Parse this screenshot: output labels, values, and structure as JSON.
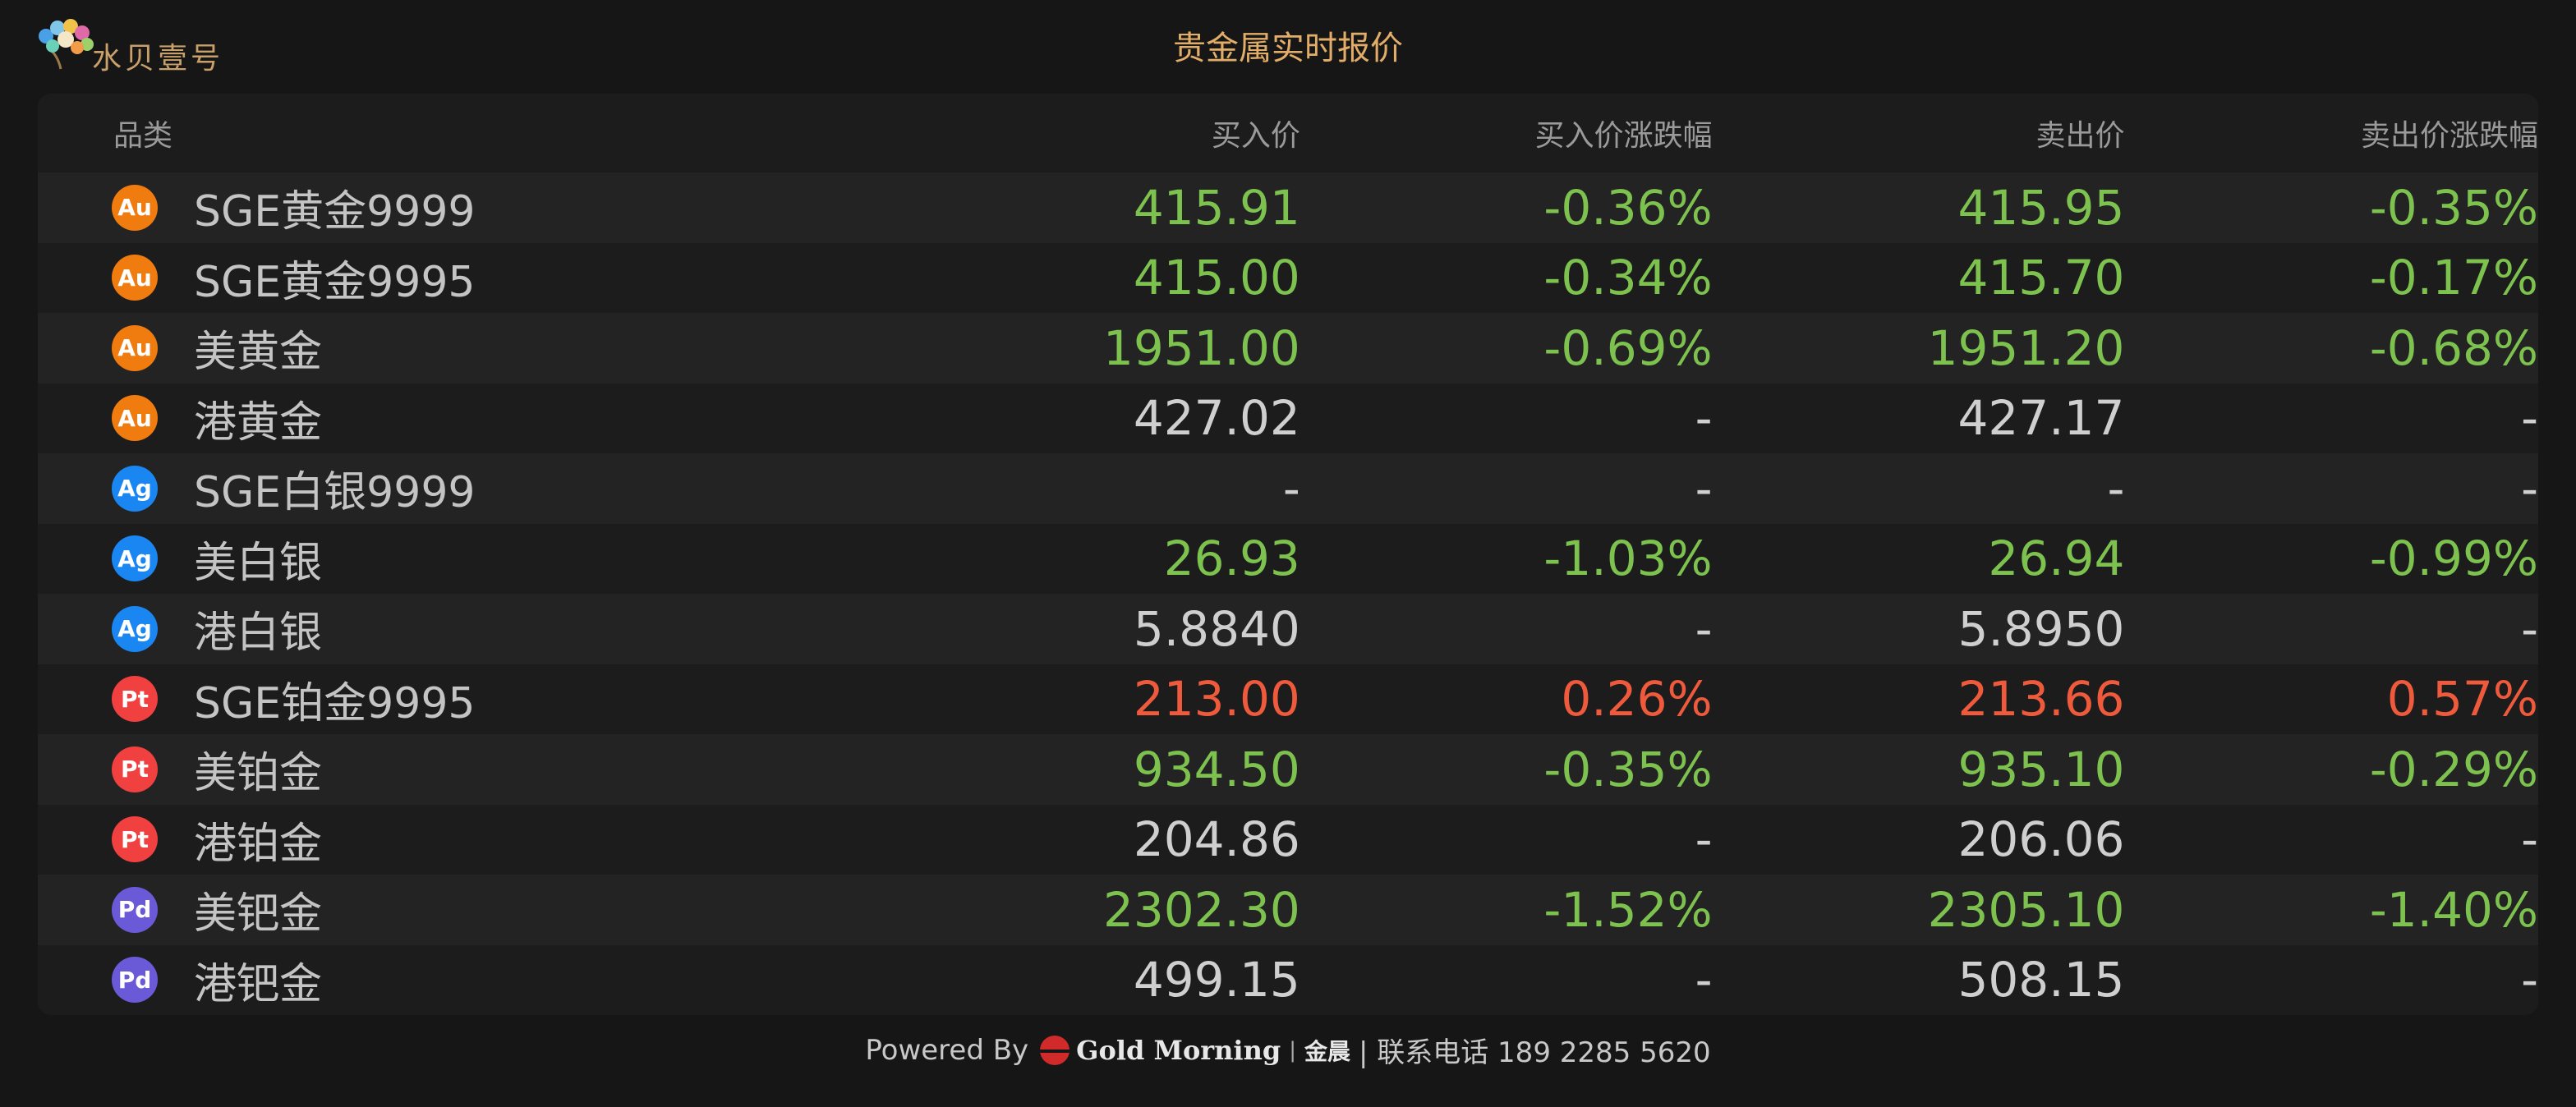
{
  "header": {
    "logo_text": "水贝壹号",
    "title": "贵金属实时报价"
  },
  "columns": {
    "name": "品类",
    "buy": "买入价",
    "buy_change": "买入价涨跌幅",
    "sell": "卖出价",
    "sell_change": "卖出价涨跌幅"
  },
  "badge_colors": {
    "Au": "#f07b0f",
    "Ag": "#1a86f2",
    "Pt": "#f04040",
    "Pd": "#6a5ad8"
  },
  "value_colors": {
    "up": "#ef5a3c",
    "down": "#7dc24e",
    "flat": "#cfcfcf"
  },
  "rows": [
    {
      "badge": "Au",
      "name": "SGE黄金9999",
      "buy": "415.91",
      "buy_change": "-0.36%",
      "sell": "415.95",
      "sell_change": "-0.35%",
      "trend": "down"
    },
    {
      "badge": "Au",
      "name": "SGE黄金9995",
      "buy": "415.00",
      "buy_change": "-0.34%",
      "sell": "415.70",
      "sell_change": "-0.17%",
      "trend": "down"
    },
    {
      "badge": "Au",
      "name": "美黄金",
      "buy": "1951.00",
      "buy_change": "-0.69%",
      "sell": "1951.20",
      "sell_change": "-0.68%",
      "trend": "down"
    },
    {
      "badge": "Au",
      "name": "港黄金",
      "buy": "427.02",
      "buy_change": "-",
      "sell": "427.17",
      "sell_change": "-",
      "trend": "flat"
    },
    {
      "badge": "Ag",
      "name": "SGE白银9999",
      "buy": "-",
      "buy_change": "-",
      "sell": "-",
      "sell_change": "-",
      "trend": "flat"
    },
    {
      "badge": "Ag",
      "name": "美白银",
      "buy": "26.93",
      "buy_change": "-1.03%",
      "sell": "26.94",
      "sell_change": "-0.99%",
      "trend": "down"
    },
    {
      "badge": "Ag",
      "name": "港白银",
      "buy": "5.8840",
      "buy_change": "-",
      "sell": "5.8950",
      "sell_change": "-",
      "trend": "flat"
    },
    {
      "badge": "Pt",
      "name": "SGE铂金9995",
      "buy": "213.00",
      "buy_change": "0.26%",
      "sell": "213.66",
      "sell_change": "0.57%",
      "trend": "up"
    },
    {
      "badge": "Pt",
      "name": "美铂金",
      "buy": "934.50",
      "buy_change": "-0.35%",
      "sell": "935.10",
      "sell_change": "-0.29%",
      "trend": "down"
    },
    {
      "badge": "Pt",
      "name": "港铂金",
      "buy": "204.86",
      "buy_change": "-",
      "sell": "206.06",
      "sell_change": "-",
      "trend": "flat"
    },
    {
      "badge": "Pd",
      "name": "美钯金",
      "buy": "2302.30",
      "buy_change": "-1.52%",
      "sell": "2305.10",
      "sell_change": "-1.40%",
      "trend": "down"
    },
    {
      "badge": "Pd",
      "name": "港钯金",
      "buy": "499.15",
      "buy_change": "-",
      "sell": "508.15",
      "sell_change": "-",
      "trend": "flat"
    }
  ],
  "footer": {
    "powered_by": "Powered By",
    "brand_en": "Gold Morning",
    "brand_sep": "|",
    "brand_cn": "金晨",
    "contact": "| 联系电话 189 2285 5620"
  }
}
